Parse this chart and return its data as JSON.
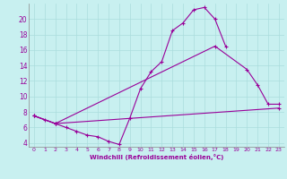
{
  "bg_color": "#c8f0f0",
  "line_color": "#990099",
  "xlabel": "Windchill (Refroidissement éolien,°C)",
  "xlim": [
    -0.5,
    23.5
  ],
  "ylim": [
    3.5,
    22.0
  ],
  "xticks": [
    0,
    1,
    2,
    3,
    4,
    5,
    6,
    7,
    8,
    9,
    10,
    11,
    12,
    13,
    14,
    15,
    16,
    17,
    18,
    19,
    20,
    21,
    22,
    23
  ],
  "yticks": [
    4,
    6,
    8,
    10,
    12,
    14,
    16,
    18,
    20
  ],
  "curve1_x": [
    0,
    1,
    2,
    3,
    4,
    5,
    6,
    7,
    8,
    9,
    10,
    11,
    12,
    13,
    14,
    15,
    16,
    17,
    18
  ],
  "curve1_y": [
    7.5,
    7.0,
    6.5,
    6.0,
    5.5,
    5.0,
    4.8,
    4.2,
    3.8,
    7.2,
    11.0,
    13.2,
    14.5,
    18.5,
    19.5,
    21.2,
    21.5,
    20.0,
    16.5
  ],
  "curve2_x": [
    0,
    2,
    17,
    20,
    21,
    22,
    23
  ],
  "curve2_y": [
    7.5,
    6.5,
    16.5,
    13.5,
    11.5,
    9.0,
    9.0
  ],
  "curve3_x": [
    0,
    2,
    23
  ],
  "curve3_y": [
    7.5,
    6.5,
    8.5
  ]
}
